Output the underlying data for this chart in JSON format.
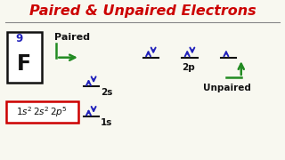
{
  "title": "Paired & Unpaired Electrons",
  "title_color": "#cc0000",
  "title_fontsize": 11.5,
  "bg_color": "#f8f8f0",
  "element_symbol": "F",
  "element_number": "9",
  "config_box_color": "#cc0000",
  "element_box_color": "#111111",
  "element_number_color": "#2222bb",
  "arrow_color": "#228b22",
  "orbital_color": "#2222bb",
  "orbital_line_color": "#111111",
  "label_black": "#111111",
  "label_blue": "#2222bb"
}
